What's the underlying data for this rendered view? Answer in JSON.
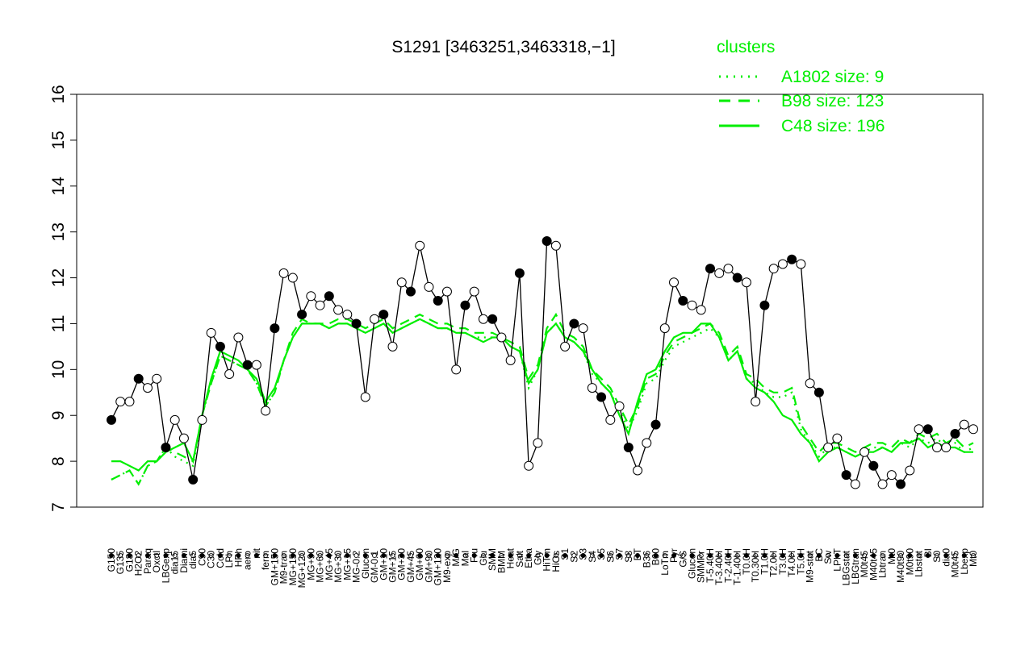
{
  "chart_data": {
    "type": "line",
    "title": "S1291 [3463251,3463318,−1]",
    "xlabel": "",
    "ylabel": "",
    "ylim": [
      7,
      16
    ],
    "yticks": [
      7,
      8,
      9,
      10,
      11,
      12,
      13,
      14,
      15,
      16
    ],
    "grid": false,
    "legend": {
      "title": "clusters",
      "placement": "top-right",
      "color": "#00ee00",
      "entries": [
        {
          "label": "A1802 size: 9",
          "style": "dotted"
        },
        {
          "label": "B98 size: 123",
          "style": "dashed"
        },
        {
          "label": "C48 size: 196",
          "style": "solid"
        }
      ]
    },
    "x_tick_labels": [
      "G150",
      "G135",
      "G180",
      "H2O2",
      "Paraq",
      "Oxctl",
      "LBGexp",
      "dia15",
      "Diami",
      "dia5",
      "C90",
      "C30",
      "Cold",
      "LPh",
      "HPh",
      "aero",
      "nit",
      "ferm",
      "GM+150",
      "M9-tran",
      "MG+150",
      "MG+120",
      "MG+90",
      "MG+60",
      "MG+45",
      "MG+30",
      "MG+15",
      "MG-0.2",
      "Glucon",
      "GM-0.1",
      "GM+10",
      "GM+15",
      "GM+30",
      "GM+45",
      "GM+60",
      "GM+90",
      "GM+120",
      "M9-exp",
      "M/G",
      "Mal",
      "Fru",
      "Glu",
      "SMM",
      "BMM",
      "Heat",
      "Salt",
      "Etha",
      "Gly",
      "HiTm",
      "HiOs",
      "S1",
      "S2",
      "S3",
      "S4",
      "S5",
      "S6",
      "S7",
      "S8",
      "BT",
      "B36",
      "B60",
      "LoTm",
      "Pyr",
      "G/S",
      "Glucon",
      "SMMPr",
      "T-5.40H",
      "T-3.40H",
      "T-2.40H",
      "T-1.40H",
      "T0.0H",
      "T0.30H",
      "T1.0H",
      "T2.0H",
      "T3.0H",
      "T4.0H",
      "T5.0H",
      "M9-stat",
      "BC",
      "Sw",
      "LPhT",
      "LBGstat",
      "LBGtran",
      "M0t45",
      "M40t45",
      "Lbtran",
      "Mt0",
      "M40t90",
      "M0t90",
      "Lbstat",
      "BI",
      "S0",
      "dia0",
      "M0t45",
      "Lbexp",
      "Mt0"
    ],
    "series": [
      {
        "style": "solid",
        "color": "#00ee00",
        "values": [
          8.0,
          8.0,
          7.9,
          7.8,
          8.0,
          8.0,
          8.2,
          8.3,
          8.4,
          8.0,
          9.0,
          9.8,
          10.4,
          10.3,
          10.2,
          10.0,
          9.8,
          9.3,
          9.6,
          10.2,
          10.7,
          11.0,
          11.0,
          11.0,
          10.9,
          11.0,
          11.0,
          10.9,
          10.8,
          10.9,
          11.0,
          10.8,
          10.9,
          11.0,
          11.1,
          11.0,
          10.9,
          10.9,
          10.8,
          10.8,
          10.7,
          10.6,
          10.7,
          10.7,
          10.5,
          10.4,
          9.7,
          10.0,
          10.8,
          11.0,
          10.7,
          10.6,
          10.4,
          10.0,
          9.7,
          9.5,
          9.0,
          8.6,
          9.3,
          9.9,
          10.0,
          10.4,
          10.7,
          10.8,
          10.8,
          11.0,
          11.0,
          10.7,
          10.2,
          10.4,
          9.8,
          9.6,
          9.5,
          9.3,
          9.0,
          8.9,
          8.6,
          8.4,
          8.0,
          8.2,
          8.3,
          8.2,
          8.1,
          8.2,
          8.2,
          8.3,
          8.2,
          8.4,
          8.4,
          8.5,
          8.3,
          8.4,
          8.3,
          8.3,
          8.2,
          8.2
        ]
      },
      {
        "style": "dashed",
        "color": "#00ee00",
        "values": [
          7.6,
          7.7,
          7.8,
          7.5,
          7.9,
          8.0,
          8.3,
          8.2,
          8.1,
          8.0,
          9.0,
          9.7,
          10.3,
          10.2,
          10.1,
          10.0,
          9.7,
          9.2,
          9.5,
          10.2,
          10.8,
          11.1,
          11.0,
          11.0,
          11.0,
          11.1,
          11.1,
          11.0,
          10.9,
          11.0,
          11.1,
          10.9,
          11.0,
          11.1,
          11.2,
          11.1,
          11.0,
          11.0,
          10.9,
          10.9,
          10.8,
          10.8,
          10.8,
          10.7,
          10.6,
          10.5,
          9.8,
          10.1,
          10.9,
          11.2,
          10.8,
          10.7,
          10.5,
          10.0,
          9.8,
          9.6,
          9.2,
          8.8,
          9.2,
          9.8,
          9.9,
          10.3,
          10.6,
          10.7,
          10.8,
          10.9,
          11.0,
          10.8,
          10.3,
          10.5,
          9.9,
          9.8,
          9.6,
          9.5,
          9.5,
          9.6,
          8.8,
          8.5,
          8.2,
          8.4,
          8.4,
          8.3,
          8.2,
          8.3,
          8.4,
          8.4,
          8.3,
          8.5,
          8.4,
          8.6,
          8.5,
          8.6,
          8.4,
          8.5,
          8.3,
          8.4
        ]
      },
      {
        "style": "dotted",
        "color": "#00ee00",
        "values": [
          7.6,
          7.7,
          7.8,
          7.5,
          7.9,
          8.0,
          8.3,
          8.1,
          8.0,
          7.9,
          9.0,
          9.7,
          10.3,
          10.2,
          10.1,
          10.0,
          9.7,
          9.2,
          9.5,
          10.2,
          10.7,
          11.0,
          11.0,
          11.0,
          10.9,
          11.0,
          11.0,
          10.9,
          10.8,
          10.9,
          11.0,
          10.8,
          10.9,
          11.0,
          11.1,
          11.0,
          10.9,
          10.9,
          10.8,
          10.8,
          10.7,
          10.7,
          10.7,
          10.7,
          10.5,
          10.4,
          9.6,
          10.0,
          10.8,
          11.0,
          10.7,
          10.6,
          10.4,
          9.9,
          9.7,
          9.5,
          9.1,
          8.7,
          9.1,
          9.7,
          9.8,
          10.2,
          10.5,
          10.6,
          10.7,
          10.8,
          10.9,
          10.7,
          10.2,
          10.4,
          9.8,
          9.7,
          9.5,
          9.4,
          9.4,
          9.5,
          8.7,
          8.4,
          8.1,
          8.3,
          8.3,
          8.2,
          8.1,
          8.2,
          8.3,
          8.3,
          8.2,
          8.4,
          8.3,
          8.5,
          8.4,
          8.5,
          8.3,
          8.4,
          8.2,
          8.3
        ]
      },
      {
        "style": "black-with-points",
        "color": "#000000",
        "values": [
          8.9,
          9.3,
          9.3,
          9.8,
          9.6,
          9.8,
          8.3,
          8.9,
          8.5,
          7.6,
          8.9,
          10.8,
          10.5,
          9.9,
          10.7,
          10.1,
          10.1,
          9.1,
          10.9,
          12.1,
          12.0,
          11.2,
          11.6,
          11.4,
          11.6,
          11.3,
          11.2,
          11.0,
          9.4,
          11.1,
          11.2,
          10.5,
          11.9,
          11.7,
          12.7,
          11.8,
          11.5,
          11.7,
          10.0,
          11.4,
          11.7,
          11.1,
          11.1,
          10.7,
          10.2,
          12.1,
          7.9,
          8.4,
          12.8,
          12.7,
          10.5,
          11.0,
          10.9,
          9.6,
          9.4,
          8.9,
          9.2,
          8.3,
          7.8,
          8.4,
          8.8,
          10.9,
          11.9,
          11.5,
          11.4,
          11.3,
          12.2,
          12.1,
          12.2,
          12.0,
          11.9,
          9.3,
          11.4,
          12.2,
          12.3,
          12.4,
          12.3,
          9.7,
          9.5,
          8.3,
          8.5,
          7.7,
          7.5,
          8.2,
          7.9,
          7.5,
          7.7,
          7.5,
          7.8,
          8.7,
          8.7,
          8.3,
          8.3,
          8.6,
          8.8,
          8.7
        ]
      }
    ]
  }
}
